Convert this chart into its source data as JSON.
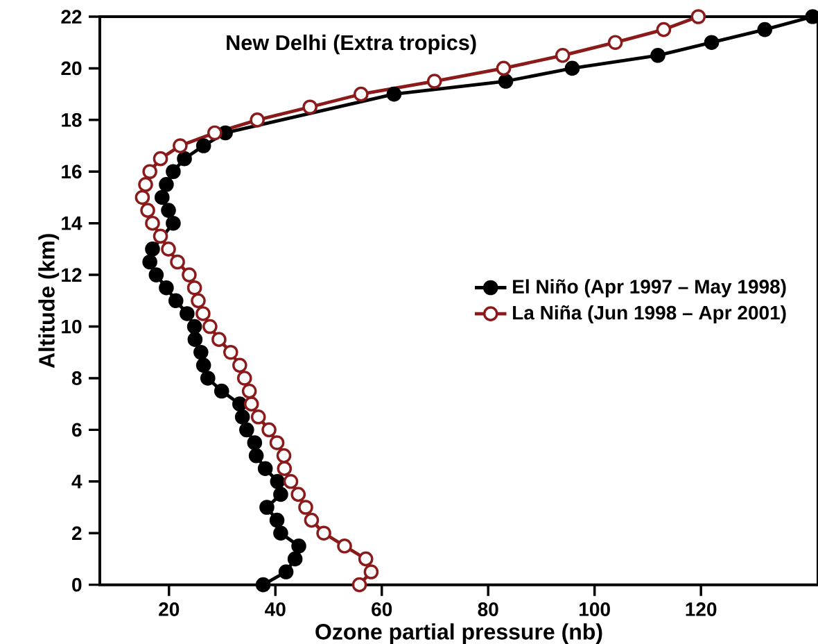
{
  "chart_data": {
    "type": "line",
    "title": "New Delhi (Extra tropics)",
    "xlabel": "Ozone partial pressure (nb)",
    "ylabel": "Altitude (km)",
    "xlim": [
      7,
      142
    ],
    "ylim": [
      0,
      22
    ],
    "xticks": [
      20,
      40,
      60,
      80,
      100,
      120
    ],
    "yticks": [
      0,
      2,
      4,
      6,
      8,
      10,
      12,
      14,
      16,
      18,
      20,
      22
    ],
    "marker": "circle",
    "legend": "right",
    "grid": false,
    "series": [
      {
        "name": "El Niño (Apr 1997 – May 1998)",
        "color": "#000000",
        "x": [
          37.7,
          42,
          43.7,
          44.4,
          41,
          40.3,
          38.4,
          41,
          40.4,
          38.1,
          36.4,
          36.1,
          34.6,
          33.8,
          33.3,
          29.9,
          27.3,
          26.5,
          26,
          24.9,
          24.8,
          23.4,
          21.3,
          19.5,
          17.6,
          16.4,
          16.9,
          18.5,
          20.8,
          19.9,
          18.7,
          19.5,
          20.8,
          22.9,
          26.5,
          30.6,
          36.4,
          62.3,
          83.3,
          95.8,
          111.9,
          122,
          132,
          141
        ],
        "values": [
          0,
          0.5,
          1,
          1.5,
          2,
          2.5,
          3,
          3.5,
          4,
          4.5,
          5,
          5.5,
          6,
          6.5,
          7,
          7.5,
          8,
          8.5,
          9,
          9.5,
          10,
          10.5,
          11,
          11.5,
          12,
          12.5,
          13,
          null,
          14,
          14.5,
          15,
          15.5,
          16,
          16.5,
          17,
          17.5,
          null,
          19,
          19.5,
          20,
          20.5,
          21,
          21.5,
          22
        ]
      },
      {
        "name": "La Niña (Jun 1998 – Apr 2001)",
        "color": "#8b1a1a",
        "x": [
          55.8,
          58,
          57,
          53,
          49.1,
          46.8,
          45.7,
          44.3,
          42.9,
          41.7,
          41.6,
          40.3,
          38.8,
          36.8,
          35.5,
          35.1,
          34.2,
          33.3,
          31.6,
          29.4,
          27.7,
          26.4,
          25.5,
          24.8,
          23.8,
          21.6,
          19.9,
          18.4,
          16.9,
          16,
          15,
          15.6,
          16.4,
          18.4,
          22.1,
          28.6,
          36.6,
          46.5,
          56.1,
          69.9,
          82.9,
          94,
          103.9,
          113,
          119.5
        ],
        "values": [
          0,
          0.5,
          1,
          1.5,
          2,
          2.5,
          3,
          3.5,
          4,
          4.5,
          5,
          5.5,
          6,
          6.5,
          7,
          7.5,
          8,
          8.5,
          9,
          9.5,
          10,
          10.5,
          11,
          11.5,
          12,
          12.5,
          13,
          13.5,
          14,
          14.5,
          15,
          15.5,
          16,
          16.5,
          17,
          17.5,
          18,
          18.5,
          19,
          19.5,
          20,
          20.5,
          21,
          21.5,
          22
        ]
      }
    ]
  }
}
